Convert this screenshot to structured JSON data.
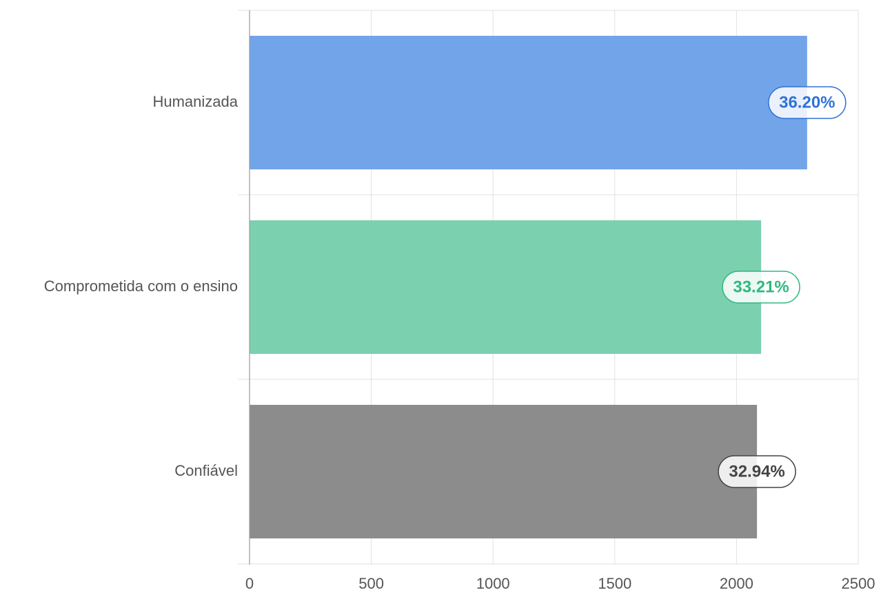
{
  "chart_data": {
    "type": "bar",
    "orientation": "horizontal",
    "categories": [
      "Humanizada",
      "Comprometida com o ensino",
      "Confiável"
    ],
    "values": [
      2290,
      2101,
      2084
    ],
    "data_labels": [
      "36.20%",
      "33.21%",
      "32.94%"
    ],
    "colors": [
      "#72a4ea",
      "#7bd1af",
      "#8c8c8c"
    ],
    "label_colors": [
      "#2f72d6",
      "#2fb87e",
      "#444444"
    ],
    "xlim": [
      0,
      2500
    ],
    "xticks": [
      0,
      500,
      1000,
      1500,
      2000,
      2500
    ],
    "xtick_labels": [
      "0",
      "500",
      "1000",
      "1500",
      "2000",
      "2500"
    ],
    "title": "",
    "xlabel": "",
    "ylabel": "",
    "grid": true,
    "legend": "none"
  }
}
